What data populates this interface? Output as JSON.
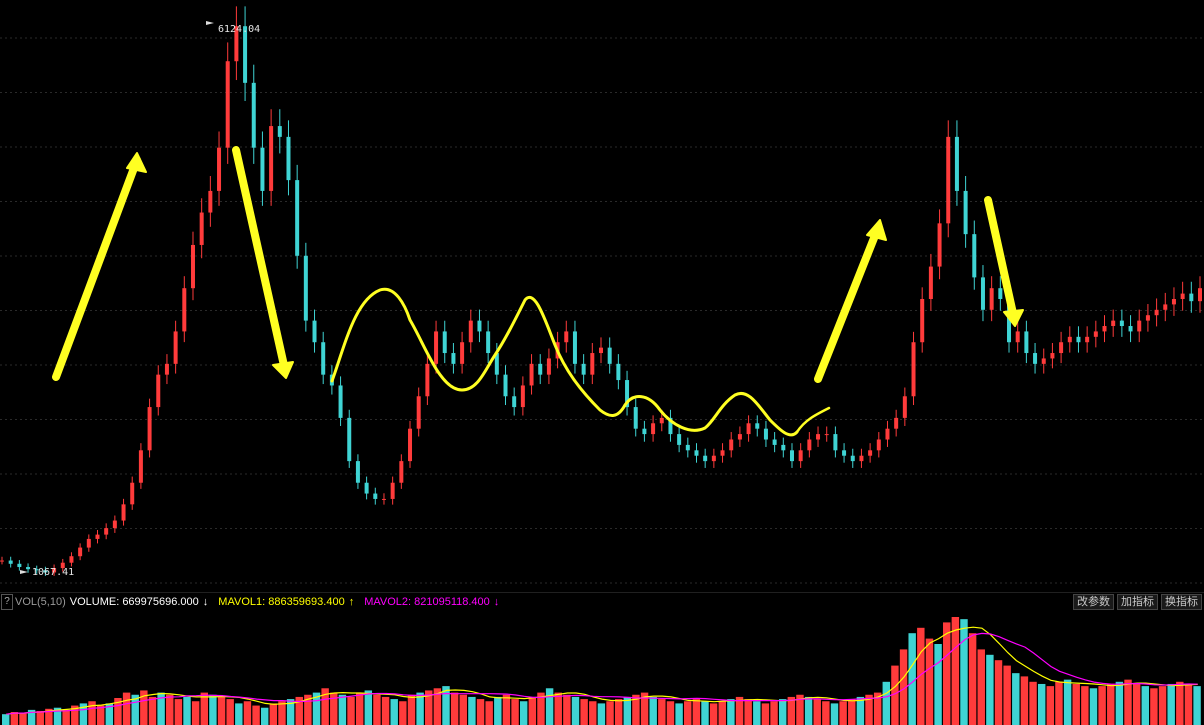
{
  "chart_data": {
    "type": "candlestick",
    "price_range": [
      1000,
      6200
    ],
    "grid": "horizontal dotted",
    "labels": {
      "high": "6124.04",
      "low": "1067.41"
    },
    "close": [
      1180,
      1150,
      1120,
      1100,
      1090,
      1070,
      1110,
      1160,
      1220,
      1300,
      1380,
      1420,
      1480,
      1550,
      1700,
      1900,
      2200,
      2600,
      2900,
      3000,
      3300,
      3700,
      4100,
      4400,
      4600,
      5000,
      5800,
      6124,
      5600,
      5000,
      4600,
      5200,
      5100,
      4700,
      4000,
      3400,
      3200,
      2900,
      2800,
      2500,
      2100,
      1900,
      1800,
      1750,
      1750,
      1900,
      2100,
      2400,
      2700,
      3000,
      3300,
      3100,
      3000,
      3200,
      3400,
      3300,
      3100,
      2900,
      2700,
      2600,
      2800,
      3000,
      2900,
      3050,
      3200,
      3300,
      3000,
      2900,
      3100,
      3150,
      3000,
      2850,
      2600,
      2400,
      2350,
      2450,
      2500,
      2350,
      2250,
      2200,
      2150,
      2100,
      2150,
      2200,
      2300,
      2350,
      2450,
      2400,
      2300,
      2250,
      2200,
      2100,
      2200,
      2300,
      2350,
      2350,
      2200,
      2150,
      2100,
      2150,
      2200,
      2300,
      2400,
      2500,
      2700,
      3200,
      3600,
      3900,
      4300,
      5100,
      4600,
      4200,
      3800,
      3500,
      3700,
      3600,
      3200,
      3300,
      3100,
      3000,
      3050,
      3100,
      3200,
      3250,
      3200,
      3250,
      3300,
      3350,
      3400,
      3350,
      3300,
      3400,
      3450,
      3500,
      3550,
      3600,
      3650,
      3580,
      3700
    ],
    "volume": {
      "indicator": "VOL(5,10)",
      "volume": "669975696.000",
      "mavol1": "886359693.400",
      "mavol2": "821095118.400",
      "values": [
        10,
        12,
        11,
        14,
        13,
        15,
        16,
        14,
        18,
        20,
        22,
        18,
        20,
        25,
        30,
        28,
        32,
        26,
        30,
        28,
        24,
        26,
        22,
        30,
        28,
        26,
        24,
        20,
        22,
        18,
        16,
        20,
        22,
        24,
        26,
        28,
        30,
        34,
        30,
        28,
        26,
        30,
        32,
        28,
        26,
        24,
        22,
        28,
        30,
        32,
        34,
        36,
        30,
        28,
        26,
        24,
        22,
        26,
        28,
        24,
        22,
        26,
        30,
        34,
        30,
        28,
        26,
        24,
        22,
        20,
        22,
        24,
        26,
        28,
        30,
        26,
        24,
        22,
        20,
        22,
        24,
        22,
        20,
        22,
        24,
        26,
        24,
        22,
        20,
        22,
        24,
        26,
        28,
        26,
        24,
        22,
        20,
        22,
        24,
        26,
        28,
        30,
        40,
        55,
        70,
        85,
        90,
        80,
        75,
        95,
        100,
        98,
        85,
        70,
        65,
        60,
        55,
        48,
        45,
        40,
        38,
        36,
        40,
        42,
        38,
        36,
        34,
        36,
        38,
        40,
        42,
        38,
        36,
        34,
        36,
        38,
        40,
        38,
        36
      ]
    }
  },
  "volume_bar": {
    "help": "?",
    "indicator_label": "VOL(5,10)",
    "volume_label": "VOLUME: 669975696.000",
    "mavol1_label": "MAVOL1: 886359693.400",
    "mavol2_label": "MAVOL2: 821095118.400",
    "buttons": [
      "改参数",
      "加指标",
      "换指标"
    ]
  },
  "colors": {
    "up": "#ff3b3b",
    "down": "#3fd4d4",
    "annotation": "#ffff00",
    "mavol1": "#ffff00",
    "mavol2": "#ff00ff",
    "volume_text": "#ffffff"
  }
}
